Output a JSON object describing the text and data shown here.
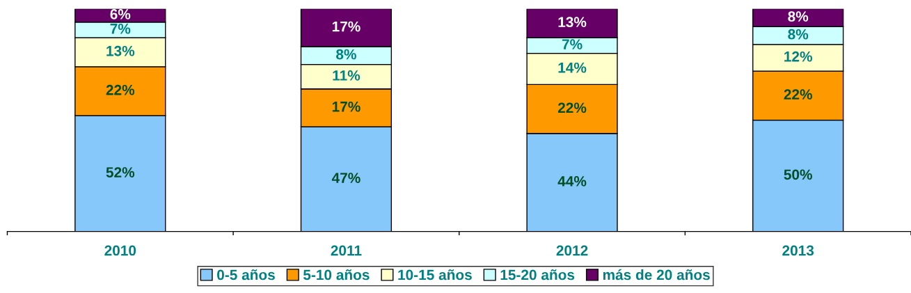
{
  "chart_data": {
    "type": "bar",
    "stacked": true,
    "categories": [
      "2010",
      "2011",
      "2012",
      "2013"
    ],
    "series": [
      {
        "name": "0-5 años",
        "color": "#87c8fa",
        "values": [
          52,
          47,
          44,
          50
        ],
        "value_labels": [
          "52%",
          "47%",
          "44%",
          "50%"
        ]
      },
      {
        "name": "5-10 años",
        "color": "#ff9900",
        "values": [
          22,
          17,
          22,
          22
        ],
        "value_labels": [
          "22%",
          "17%",
          "22%",
          "22%"
        ]
      },
      {
        "name": "10-15 años",
        "color": "#ffffcc",
        "values": [
          13,
          11,
          14,
          12
        ],
        "value_labels": [
          "13%",
          "11%",
          "14%",
          "12%"
        ]
      },
      {
        "name": "15-20 años",
        "color": "#ccffff",
        "values": [
          7,
          8,
          7,
          8
        ],
        "value_labels": [
          "7%",
          "8%",
          "7%",
          "8%"
        ]
      },
      {
        "name": "más de 20 años",
        "color": "#660066",
        "values": [
          6,
          17,
          13,
          8
        ],
        "value_labels": [
          "6%",
          "17%",
          "13%",
          "8%"
        ]
      }
    ],
    "tick_labels": "x",
    "grid": false,
    "legend": "bottom"
  }
}
